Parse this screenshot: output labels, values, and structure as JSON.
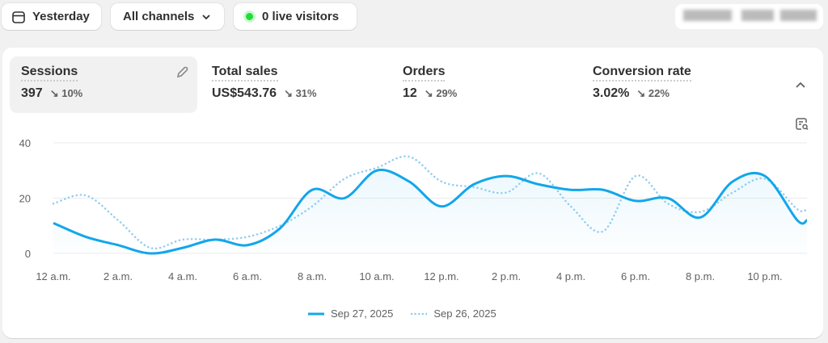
{
  "toolbar": {
    "date_label": "Yesterday",
    "date_icon": "calendar-icon",
    "channel_label": "All channels",
    "channel_icon": "chevron-down-icon",
    "live_label": "0 live visitors",
    "live_color": "#22c55e"
  },
  "metrics": [
    {
      "label": "Sessions",
      "value": "397",
      "change": "10%",
      "direction": "down",
      "active": true
    },
    {
      "label": "Total sales",
      "value": "US$543.76",
      "change": "31%",
      "direction": "down"
    },
    {
      "label": "Orders",
      "value": "12",
      "change": "29%",
      "direction": "down"
    },
    {
      "label": "Conversion rate",
      "value": "3.02%",
      "change": "22%",
      "direction": "down"
    }
  ],
  "icons": {
    "edit": "pencil-icon",
    "collapse": "chevron-up-icon",
    "insight": "report-search-icon"
  },
  "chart_data": {
    "type": "line",
    "x": [
      "12 a.m.",
      "1 a.m.",
      "2 a.m.",
      "3 a.m.",
      "4 a.m.",
      "5 a.m.",
      "6 a.m.",
      "7 a.m.",
      "8 a.m.",
      "9 a.m.",
      "10 a.m.",
      "11 a.m.",
      "12 p.m.",
      "1 p.m.",
      "2 p.m.",
      "3 p.m.",
      "4 p.m.",
      "5 p.m.",
      "6 p.m.",
      "7 p.m.",
      "8 p.m.",
      "9 p.m.",
      "10 p.m.",
      "11 p.m."
    ],
    "x_ticks": [
      "12 a.m.",
      "2 a.m.",
      "4 a.m.",
      "6 a.m.",
      "8 a.m.",
      "10 a.m.",
      "12 p.m.",
      "2 p.m.",
      "4 p.m.",
      "6 p.m.",
      "8 p.m.",
      "10 p.m."
    ],
    "y_ticks": [
      "0",
      "20",
      "40"
    ],
    "ylim": [
      0,
      40
    ],
    "grid": true,
    "legend_placement": "bottom",
    "series": [
      {
        "name": "Sep 27, 2025",
        "style": "solid",
        "color": "#13a6ea",
        "values": [
          11,
          6,
          3,
          0,
          2,
          5,
          3,
          9,
          23,
          20,
          30,
          26,
          17,
          25,
          28,
          25,
          23,
          23,
          19,
          20,
          13,
          26,
          28,
          12
        ]
      },
      {
        "name": "Sep 26, 2025",
        "style": "dotted",
        "color": "#8fcdef",
        "values": [
          18,
          21,
          12,
          2,
          5,
          5,
          6,
          10,
          17,
          27,
          31,
          35,
          26,
          24,
          22,
          29,
          17,
          8,
          28,
          18,
          15,
          22,
          27,
          16
        ]
      }
    ]
  }
}
